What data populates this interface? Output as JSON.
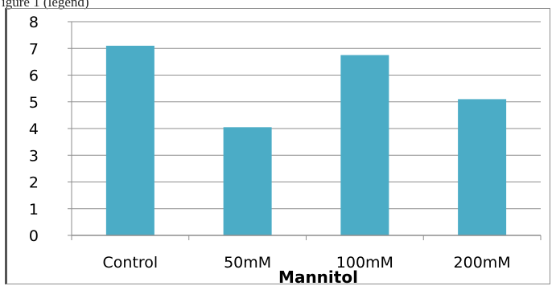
{
  "caption_fragment": "igure 1 (legend)",
  "chart_data": {
    "type": "bar",
    "title": "",
    "xlabel": "Mannitol",
    "ylabel": "",
    "categories": [
      "Control",
      "50mM",
      "100mM",
      "200mM"
    ],
    "values": [
      7.1,
      4.05,
      6.75,
      5.1
    ],
    "ylim": [
      0,
      8
    ],
    "yticks": [
      0,
      1,
      2,
      3,
      4,
      5,
      6,
      7,
      8
    ],
    "grid": true,
    "legend": "none",
    "colors": {
      "bar": "#4bacc6",
      "grid": "#8e8e8e",
      "axis": "#8e8e8e"
    }
  }
}
